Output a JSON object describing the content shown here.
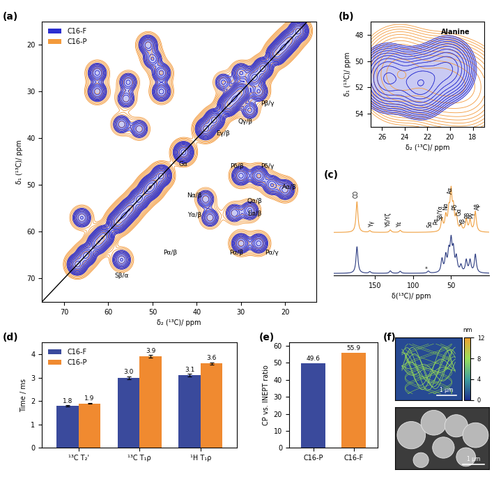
{
  "chart_data": [
    {
      "panel": "(a)",
      "type": "contour",
      "xlabel": "δ₂ (¹³C)/ ppm",
      "ylabel": "δ₁ (¹³C)/ ppm",
      "xlim": [
        75,
        13
      ],
      "ylim": [
        75,
        15
      ],
      "xticks": [
        70,
        60,
        50,
        40,
        30,
        20
      ],
      "yticks": [
        20,
        30,
        40,
        50,
        60,
        70
      ],
      "legend": "upper left",
      "series": [
        {
          "name": "C16-F",
          "color": "#2b2fd0",
          "width": 1.0,
          "peaks": [
            [
              17,
              17,
              1
            ],
            [
              19,
              19,
              1
            ],
            [
              20.5,
              20.5,
              1
            ],
            [
              22,
              22,
              1
            ],
            [
              25,
              25,
              1
            ],
            [
              27,
              27,
              1
            ],
            [
              30,
              30,
              1
            ],
            [
              31.5,
              31.5,
              1
            ],
            [
              33,
              33,
              1
            ],
            [
              36,
              36,
              1
            ],
            [
              38,
              38,
              1
            ],
            [
              43,
              43,
              1
            ],
            [
              48,
              48,
              1
            ],
            [
              50,
              50,
              1
            ],
            [
              51,
              51,
              1
            ],
            [
              53,
              53,
              1
            ],
            [
              55,
              55,
              1
            ],
            [
              56.5,
              56.5,
              1
            ],
            [
              58,
              58,
              1
            ],
            [
              61,
              61,
              1
            ],
            [
              62.5,
              62.5,
              1
            ],
            [
              65,
              65,
              1
            ],
            [
              67,
              67,
              1
            ],
            [
              51,
              20,
              0.6
            ],
            [
              20,
              51,
              0.6
            ],
            [
              50,
              23,
              0.5
            ],
            [
              23,
              50,
              0.5
            ],
            [
              62.5,
              30,
              0.6
            ],
            [
              30,
              62.5,
              0.6
            ],
            [
              62.5,
              26,
              0.55
            ],
            [
              26,
              62.5,
              0.55
            ],
            [
              48,
              26,
              0.55
            ],
            [
              26,
              48,
              0.55
            ],
            [
              48,
              30,
              0.55
            ],
            [
              30,
              48,
              0.55
            ],
            [
              30,
              26,
              0.5
            ],
            [
              26,
              30,
              0.5
            ],
            [
              55.5,
              28,
              0.4
            ],
            [
              28,
              55.5,
              0.4
            ],
            [
              56,
              31.5,
              0.35
            ],
            [
              31.5,
              56,
              0.35
            ],
            [
              53,
              38,
              0.35
            ],
            [
              38,
              53,
              0.35
            ],
            [
              57,
              37,
              0.35
            ],
            [
              37,
              57,
              0.35
            ],
            [
              66,
              57,
              0.5
            ],
            [
              57,
              66,
              0.5
            ],
            [
              34,
              28,
              0.3
            ],
            [
              28,
              34,
              0.3
            ]
          ]
        },
        {
          "name": "C16-P",
          "color": "#f39a3c",
          "width": 1.4,
          "peaks": [
            [
              17,
              17,
              1
            ],
            [
              19,
              19,
              1
            ],
            [
              20.5,
              20.5,
              1
            ],
            [
              22,
              22,
              1
            ],
            [
              25,
              25,
              1
            ],
            [
              27,
              27,
              1
            ],
            [
              30,
              30,
              1
            ],
            [
              31.5,
              31.5,
              1
            ],
            [
              33,
              33,
              1
            ],
            [
              36,
              36,
              1
            ],
            [
              38,
              38,
              1
            ],
            [
              43,
              43,
              1
            ],
            [
              48,
              48,
              1
            ],
            [
              50,
              50,
              1
            ],
            [
              51,
              51,
              1
            ],
            [
              53,
              53,
              1
            ],
            [
              55,
              55,
              1
            ],
            [
              56.5,
              56.5,
              1
            ],
            [
              58,
              58,
              1
            ],
            [
              61,
              61,
              1
            ],
            [
              62.5,
              62.5,
              1
            ],
            [
              65,
              65,
              1
            ],
            [
              67,
              67,
              1
            ],
            [
              51,
              20,
              0.6
            ],
            [
              20,
              51,
              0.6
            ],
            [
              50,
              23,
              0.5
            ],
            [
              23,
              50,
              0.5
            ],
            [
              62.5,
              30,
              0.6
            ],
            [
              30,
              62.5,
              0.6
            ],
            [
              62.5,
              26,
              0.55
            ],
            [
              26,
              62.5,
              0.55
            ],
            [
              48,
              26,
              0.55
            ],
            [
              26,
              48,
              0.55
            ],
            [
              48,
              30,
              0.55
            ],
            [
              30,
              48,
              0.55
            ],
            [
              30,
              26,
              0.5
            ],
            [
              26,
              30,
              0.5
            ],
            [
              55.5,
              28,
              0.4
            ],
            [
              28,
              55.5,
              0.4
            ],
            [
              56,
              31.5,
              0.35
            ],
            [
              31.5,
              56,
              0.35
            ],
            [
              53,
              38,
              0.35
            ],
            [
              38,
              53,
              0.35
            ],
            [
              57,
              37,
              0.35
            ],
            [
              37,
              57,
              0.35
            ],
            [
              66,
              57,
              0.5
            ],
            [
              57,
              66,
              0.5
            ],
            [
              34,
              28,
              0.3
            ],
            [
              28,
              34,
              0.3
            ]
          ]
        }
      ],
      "annotations": [
        {
          "text": "Pβ/γ",
          "x": 24,
          "y": 32.5
        },
        {
          "text": "Qγ/β",
          "x": 29,
          "y": 36.5
        },
        {
          "text": "Eγ/β",
          "x": 34,
          "y": 39
        },
        {
          "text": "Gα",
          "x": 43,
          "y": 45.5
        },
        {
          "text": "Pδ/β",
          "x": 31,
          "y": 46
        },
        {
          "text": "Pδ/γ",
          "x": 24,
          "y": 46
        },
        {
          "text": "Aα/β",
          "x": 19,
          "y": 50.5
        },
        {
          "text": "Nα/β",
          "x": 40.5,
          "y": 52.2
        },
        {
          "text": "Qα/β",
          "x": 27,
          "y": 53.5
        },
        {
          "text": "Eα/β",
          "x": 27,
          "y": 56.2
        },
        {
          "text": "Yα/β",
          "x": 40.5,
          "y": 56.5
        },
        {
          "text": "Pα/β",
          "x": 46,
          "y": 64.5
        },
        {
          "text": "Pα/β",
          "x": 31,
          "y": 64.5
        },
        {
          "text": "Pα/γ",
          "x": 23,
          "y": 64.5
        },
        {
          "text": "Sβ/α",
          "x": 57,
          "y": 69.5
        }
      ]
    },
    {
      "panel": "(b)",
      "type": "contour",
      "xlabel": "δ₂ (¹³C)/ ppm",
      "ylabel": "δ₁ (¹³C)/ ppm",
      "xlim": [
        27,
        17
      ],
      "ylim": [
        55,
        47
      ],
      "xticks": [
        26,
        24,
        22,
        20,
        18
      ],
      "yticks": [
        48,
        50,
        52,
        54
      ],
      "series": [
        {
          "color": "#2b2fd0",
          "width": 1.1,
          "peaks": [
            [
              25.5,
              51.3,
              0.8
            ],
            [
              22.6,
              51.7,
              1.0
            ],
            [
              20.2,
              50.6,
              0.6
            ]
          ]
        },
        {
          "color": "#f39a3c",
          "width": 1.5,
          "peaks": [
            [
              24.5,
              51.0,
              0.9
            ],
            [
              21.0,
              51.5,
              0.7
            ],
            [
              18.5,
              52.0,
              0.5
            ]
          ]
        }
      ],
      "annotations": [
        {
          "text": "Alanine",
          "x": 19.5,
          "y": 47.8
        }
      ]
    },
    {
      "panel": "(c)",
      "type": "line",
      "xlabel": "δ(¹³C)/ ppm",
      "xlim": [
        205,
        0
      ],
      "xticks": [
        150,
        100,
        50
      ],
      "tick_labels": "x",
      "series": [
        {
          "color": "#f0a040",
          "baseline": 1.0,
          "width": 1.5,
          "peaks": [
            [
              174,
              0.75
            ],
            [
              157,
              0.04
            ],
            [
              130,
              0.06
            ],
            [
              117,
              0.05
            ],
            [
              62,
              0.3
            ],
            [
              57,
              0.35
            ],
            [
              53,
              0.45
            ],
            [
              50,
              0.9
            ],
            [
              47,
              0.5
            ],
            [
              43,
              0.35
            ],
            [
              37,
              0.15
            ],
            [
              30,
              0.3
            ],
            [
              25,
              0.28
            ],
            [
              18,
              0.5
            ]
          ]
        },
        {
          "color": "#2a3a80",
          "baseline": 0.0,
          "width": 1.5,
          "peaks": [
            [
              174,
              0.65
            ],
            [
              157,
              0.04
            ],
            [
              130,
              0.06
            ],
            [
              117,
              0.05
            ],
            [
              80,
              0.05
            ],
            [
              62,
              0.32
            ],
            [
              57,
              0.38
            ],
            [
              53,
              0.45
            ],
            [
              50,
              0.7
            ],
            [
              47,
              0.5
            ],
            [
              43,
              0.35
            ],
            [
              37,
              0.17
            ],
            [
              30,
              0.3
            ],
            [
              25,
              0.3
            ],
            [
              18,
              0.45
            ]
          ]
        }
      ],
      "annotations": [
        {
          "text": "CO",
          "x": 175,
          "y": 1.85
        },
        {
          "text": "Yγ",
          "x": 155,
          "y": 1.15
        },
        {
          "text": "Yδ/Yζ",
          "x": 133,
          "y": 1.15
        },
        {
          "text": "Yε",
          "x": 118,
          "y": 1.15
        },
        {
          "text": "Sα",
          "x": 78,
          "y": 1.12
        },
        {
          "text": "Pα",
          "x": 70,
          "y": 1.2
        },
        {
          "text": "Sβ/Yα",
          "x": 64,
          "y": 1.3
        },
        {
          "text": "Nα",
          "x": 57,
          "y": 1.55
        },
        {
          "text": "Aα",
          "x": 51,
          "y": 1.95
        },
        {
          "text": "Pδ",
          "x": 45,
          "y": 1.55
        },
        {
          "text": "Gα",
          "x": 39,
          "y": 1.42
        },
        {
          "text": "Yβ",
          "x": 34,
          "y": 1.2
        },
        {
          "text": "Pβ",
          "x": 29,
          "y": 1.35
        },
        {
          "text": "Pγ",
          "x": 23,
          "y": 1.35
        },
        {
          "text": "Aβ",
          "x": 15,
          "y": 1.55
        },
        {
          "text": "*",
          "x": 80,
          "y": 0.12
        }
      ]
    },
    {
      "panel": "(d)",
      "type": "bar",
      "ylabel": "Time / ms",
      "categories": [
        "¹³C T₂'",
        "¹³C T₁ρ",
        "¹H T₁ρ"
      ],
      "ylim": [
        0,
        4.5
      ],
      "yticks": [
        0,
        1,
        2,
        3,
        4
      ],
      "legend": "upper left",
      "data_labels": true,
      "series": [
        {
          "name": "C16-F",
          "color": "#3a4a9c",
          "values": [
            1.8,
            3.0,
            3.1
          ],
          "errors": [
            0.02,
            0.06,
            0.06
          ],
          "value_labels": [
            "1.8",
            "3.0",
            "3.1"
          ]
        },
        {
          "name": "C16-P",
          "color": "#f08a30",
          "values": [
            1.9,
            3.9,
            3.6
          ],
          "errors": [
            0.02,
            0.06,
            0.04
          ],
          "value_labels": [
            "1.9",
            "3.9",
            "3.6"
          ]
        }
      ]
    },
    {
      "panel": "(e)",
      "type": "bar",
      "ylabel": "CP vs. INEPT ratio",
      "categories": [
        "C16-P",
        "C16-F"
      ],
      "values": [
        49.6,
        55.9
      ],
      "colors": [
        "#3a4a9c",
        "#f08a30"
      ],
      "ylim": [
        0,
        62
      ],
      "yticks": [
        0,
        10,
        20,
        30,
        40,
        50,
        60
      ],
      "data_labels": true
    },
    {
      "panel": "(f)",
      "type": "image",
      "scale_bars": [
        "1 μm",
        "1 μm"
      ],
      "colorbar": {
        "label": "nm",
        "range": [
          0,
          12
        ],
        "ticks": [
          0,
          4,
          8,
          12
        ]
      }
    }
  ]
}
